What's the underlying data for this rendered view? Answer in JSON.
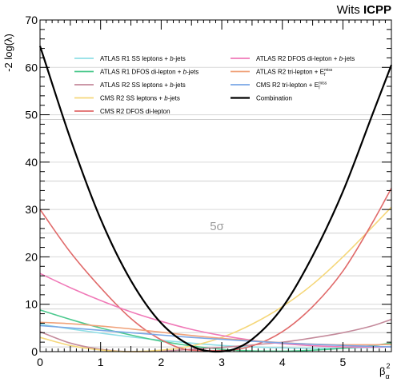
{
  "brand": {
    "prefix": "Wits",
    "name": "ICPP"
  },
  "chart_data": {
    "type": "line",
    "title": "",
    "xlabel": "β²_α",
    "xlabel_main": "β",
    "xlabel_sup": "2",
    "xlabel_sub": "α",
    "ylabel": "-2 log(λ)",
    "xlim": [
      0,
      5.8
    ],
    "ylim": [
      0,
      70
    ],
    "x_ticks": [
      0,
      1,
      2,
      3,
      4,
      5
    ],
    "y_ticks": [
      0,
      10,
      20,
      30,
      40,
      50,
      60,
      70
    ],
    "grid": "horizontal",
    "legend_position": "top",
    "sigma_lines": [
      {
        "value": 1,
        "label": ""
      },
      {
        "value": 4,
        "label": ""
      },
      {
        "value": 9,
        "label": ""
      },
      {
        "value": 16,
        "label": ""
      },
      {
        "value": 25,
        "label": "5σ"
      },
      {
        "value": 36,
        "label": ""
      },
      {
        "value": 49,
        "label": ""
      }
    ],
    "series": [
      {
        "name": "ATLAS R1 SS leptons + b-jets",
        "label_parts": [
          "ATLAS R1 SS leptons + ",
          "b",
          "-jets"
        ],
        "color": "#8fdfe6",
        "x": [
          0,
          0.5,
          1,
          1.5,
          2,
          2.5,
          3,
          3.5,
          4,
          4.5,
          5,
          5.5,
          5.8
        ],
        "y": [
          5.8,
          4.8,
          3.9,
          3.1,
          2.4,
          1.8,
          1.3,
          1.0,
          0.8,
          0.7,
          0.75,
          0.9,
          1.1
        ]
      },
      {
        "name": "ATLAS R1 DFOS di-lepton + b-jets",
        "label_parts": [
          "ATLAS R1 DFOS di-lepton + ",
          "b",
          "-jets"
        ],
        "color": "#4cc98e",
        "x": [
          0,
          0.5,
          1,
          1.5,
          2,
          2.5,
          3,
          3.5,
          4,
          4.5,
          5,
          5.5,
          5.8
        ],
        "y": [
          8.8,
          6.8,
          5.0,
          3.5,
          2.2,
          1.2,
          0.5,
          0.15,
          0.1,
          0.3,
          0.7,
          1.3,
          1.8
        ]
      },
      {
        "name": "ATLAS R2 SS leptons + b-jets",
        "label_parts": [
          "ATLAS R2 SS leptons + ",
          "b",
          "-jets"
        ],
        "color": "#c48a9b",
        "x": [
          0,
          0.5,
          1,
          1.5,
          2,
          2.5,
          3,
          3.5,
          4,
          4.5,
          5,
          5.5,
          5.8
        ],
        "y": [
          4.2,
          1.8,
          0.5,
          0.0,
          0.1,
          0.5,
          0.9,
          1.4,
          2.0,
          2.9,
          4.0,
          5.5,
          6.8
        ]
      },
      {
        "name": "CMS R2 SS leptons + b-jets",
        "label_parts": [
          "CMS R2 SS leptons + ",
          "b",
          "-jets"
        ],
        "color": "#f5d77a",
        "x": [
          0,
          0.5,
          1,
          1.5,
          2,
          2.5,
          3,
          3.5,
          4,
          4.5,
          5,
          5.5,
          5.8
        ],
        "y": [
          3.0,
          1.3,
          0.35,
          0.0,
          0.3,
          1.2,
          3.0,
          5.8,
          9.5,
          14.2,
          20.0,
          26.5,
          30.5
        ]
      },
      {
        "name": "CMS R2 DFOS di-lepton",
        "label_parts": [
          "CMS R2 DFOS di-lepton"
        ],
        "color": "#e06a6a",
        "x": [
          0,
          0.5,
          1,
          1.5,
          2,
          2.5,
          3,
          3.5,
          4,
          4.5,
          5,
          5.5,
          5.8
        ],
        "y": [
          30.0,
          21.0,
          13.5,
          7.0,
          2.5,
          0.3,
          0.2,
          1.2,
          4.2,
          9.5,
          17.0,
          27.5,
          34.5
        ]
      },
      {
        "name": "ATLAS R2 DFOS di-lepton + b-jets",
        "label_parts": [
          "ATLAS R2 DFOS di-lepton + ",
          "b",
          "-jets"
        ],
        "color": "#f07ab8",
        "x": [
          0,
          0.5,
          1,
          1.5,
          2,
          2.5,
          3,
          3.5,
          4,
          4.5,
          5,
          5.5,
          5.8
        ],
        "y": [
          16.5,
          13.5,
          10.8,
          8.4,
          6.4,
          4.7,
          3.4,
          2.4,
          1.7,
          1.25,
          1.0,
          0.95,
          1.0
        ]
      },
      {
        "name": "ATLAS R2 tri-lepton + E_T^miss",
        "label_parts": [
          "ATLAS R2 tri-lepton + E"
        ],
        "label_sub": "T",
        "label_sup": "miss",
        "color": "#f0a27a",
        "x": [
          0,
          0.5,
          1,
          1.5,
          2,
          2.5,
          3,
          3.5,
          4,
          4.5,
          5,
          5.5,
          5.8
        ],
        "y": [
          6.2,
          5.9,
          5.4,
          4.8,
          4.1,
          3.4,
          2.8,
          2.3,
          1.9,
          1.6,
          1.45,
          1.45,
          1.55
        ]
      },
      {
        "name": "CMS R2 tri-lepton + E_T^miss",
        "label_parts": [
          "CMS R2 tri-lepton + E"
        ],
        "label_sub": "T",
        "label_sup": "miss",
        "color": "#7aa7e6",
        "x": [
          0,
          0.5,
          1,
          1.5,
          2,
          2.5,
          3,
          3.5,
          4,
          4.5,
          5,
          5.5,
          5.8
        ],
        "y": [
          5.5,
          5.0,
          4.5,
          4.0,
          3.5,
          3.0,
          2.6,
          2.2,
          1.85,
          1.55,
          1.3,
          1.1,
          1.0
        ]
      },
      {
        "name": "Combination",
        "label_parts": [
          "Combination"
        ],
        "color": "#000000",
        "bold": true,
        "x": [
          0,
          0.5,
          1,
          1.5,
          2,
          2.5,
          2.9,
          3.2,
          3.5,
          4,
          4.5,
          5,
          5.5,
          5.8
        ],
        "y": [
          64.5,
          45.0,
          28.0,
          15.0,
          6.0,
          1.2,
          0.0,
          0.5,
          2.6,
          9.3,
          20.2,
          33.8,
          50.5,
          60.5
        ]
      }
    ]
  }
}
